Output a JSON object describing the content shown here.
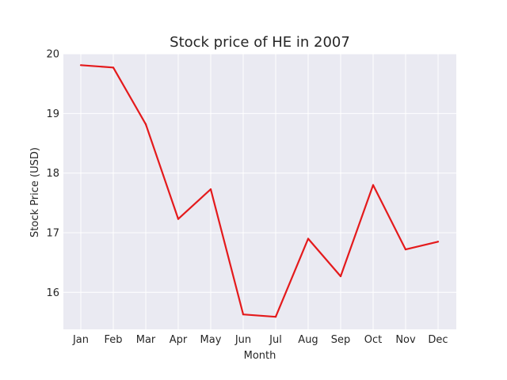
{
  "chart_data": {
    "type": "line",
    "title": "Stock price of HE in 2007",
    "xlabel": "Month",
    "ylabel": "Stock Price (USD)",
    "categories": [
      "Jan",
      "Feb",
      "Mar",
      "Apr",
      "May",
      "Jun",
      "Jul",
      "Aug",
      "Sep",
      "Oct",
      "Nov",
      "Dec"
    ],
    "values": [
      19.81,
      19.77,
      18.82,
      17.23,
      17.73,
      15.63,
      15.59,
      16.9,
      16.27,
      17.8,
      16.72,
      16.85
    ],
    "yticks": [
      16,
      17,
      18,
      19,
      20
    ],
    "ylim": [
      15.38,
      20.0
    ],
    "grid": true,
    "line_color": "#e41a1c",
    "background_color": "#eaeaf2",
    "grid_color": "#ffffff"
  }
}
